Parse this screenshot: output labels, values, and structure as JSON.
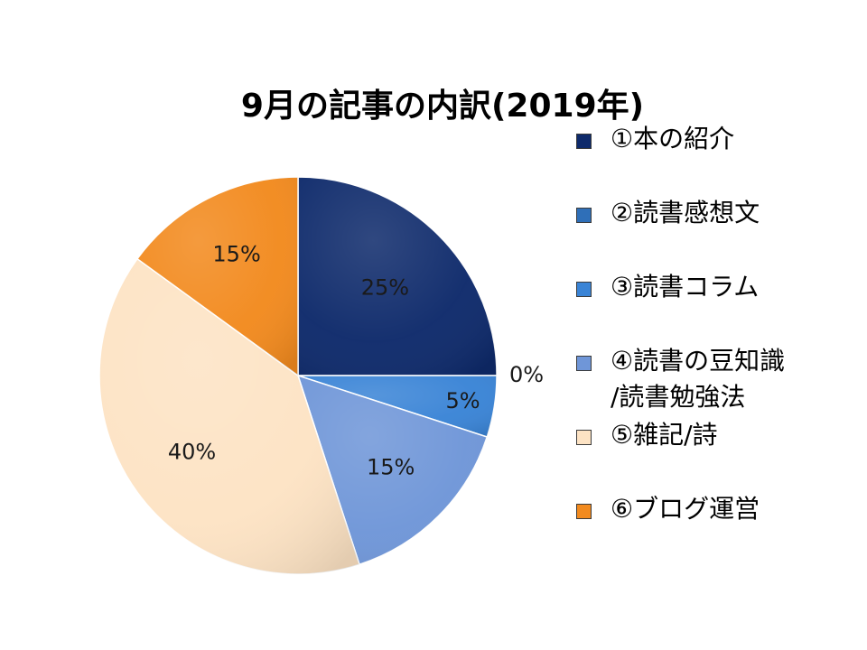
{
  "chart_data": {
    "type": "pie",
    "title": "9月の記事の内訳(2019年)",
    "categories": [
      "①本の紹介",
      "②読書感想文",
      "③読書コラム",
      "④読書の豆知識/読書勉強法",
      "⑤雑記/詩",
      "⑥ブログ運営"
    ],
    "values": [
      25,
      0,
      5,
      15,
      40,
      15
    ],
    "labels": [
      "25%",
      "0%",
      "5%",
      "15%",
      "40%",
      "15%"
    ],
    "colors": [
      "#0e2a6b",
      "#2f6fb8",
      "#3a84d6",
      "#6f96d8",
      "#fde3c4",
      "#f28a1e"
    ],
    "legend_position": "right",
    "start": "12 o'clock",
    "direction": "clockwise"
  },
  "legend": {
    "items": [
      {
        "lines": [
          "①本の紹介"
        ],
        "color": "#0e2a6b"
      },
      {
        "lines": [
          "②読書感想文"
        ],
        "color": "#2f6fb8"
      },
      {
        "lines": [
          "③読書コラム"
        ],
        "color": "#3a84d6"
      },
      {
        "lines": [
          "④読書の豆知識",
          "/読書勉強法"
        ],
        "color": "#6f96d8"
      },
      {
        "lines": [
          "⑤雑記/詩"
        ],
        "color": "#fde3c4"
      },
      {
        "lines": [
          "⑥ブログ運営"
        ],
        "color": "#f28a1e"
      }
    ]
  }
}
